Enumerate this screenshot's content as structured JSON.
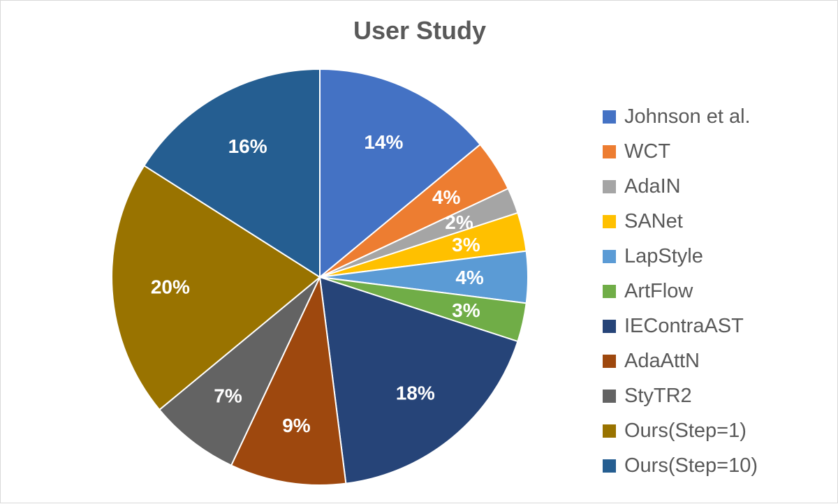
{
  "chart_data": {
    "type": "pie",
    "title": "User Study",
    "legend_position": "right",
    "labels": [
      "Johnson et al.",
      "WCT",
      "AdaIN",
      "SANet",
      "LapStyle",
      "ArtFlow",
      "IEContraAST",
      "AdaAttN",
      "StyTR2",
      "Ours(Step=1)",
      "Ours(Step=10)"
    ],
    "values": [
      14,
      4,
      2,
      3,
      4,
      3,
      18,
      9,
      7,
      20,
      16
    ],
    "value_labels": [
      "14%",
      "4%",
      "2%",
      "3%",
      "4%",
      "3%",
      "18%",
      "9%",
      "7%",
      "20%",
      "16%"
    ],
    "colors": [
      "#4472c4",
      "#ed7d31",
      "#a5a5a5",
      "#ffc000",
      "#5b9bd5",
      "#70ad47",
      "#264478",
      "#9e480e",
      "#636363",
      "#997300",
      "#255e91"
    ]
  }
}
